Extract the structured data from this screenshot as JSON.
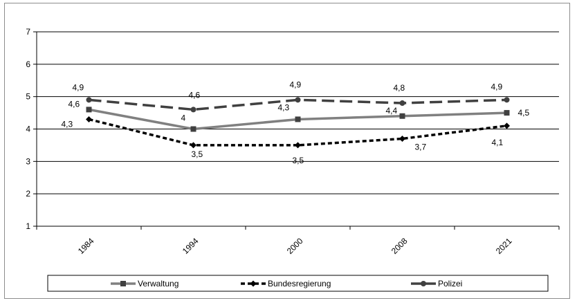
{
  "chart_data": {
    "type": "line",
    "categories": [
      "1984",
      "1994",
      "2000",
      "2008",
      "2021"
    ],
    "ylim": [
      1,
      7
    ],
    "yticks": [
      "1",
      "2",
      "3",
      "4",
      "5",
      "6",
      "7"
    ],
    "grid": true,
    "legend_position": "bottom",
    "series": [
      {
        "name": "Verwaltung",
        "values": [
          4.6,
          4.0,
          4.3,
          4.4,
          4.5
        ],
        "labels": [
          "4,6",
          "4",
          "4,3",
          "4,4",
          "4,5"
        ],
        "color": "#808080",
        "style": "solid",
        "marker": "square"
      },
      {
        "name": "Bundesregierung",
        "values": [
          4.3,
          3.5,
          3.5,
          3.7,
          4.1
        ],
        "labels": [
          "4,3",
          "3,5",
          "3,5",
          "3,7",
          "4,1"
        ],
        "color": "#000000",
        "style": "dashed",
        "marker": "diamond"
      },
      {
        "name": "Polizei",
        "values": [
          4.9,
          4.6,
          4.9,
          4.8,
          4.9
        ],
        "labels": [
          "4,9",
          "4,6",
          "4,9",
          "4,8",
          "4,9"
        ],
        "color": "#404040",
        "style": "longdash",
        "marker": "circle"
      }
    ]
  }
}
